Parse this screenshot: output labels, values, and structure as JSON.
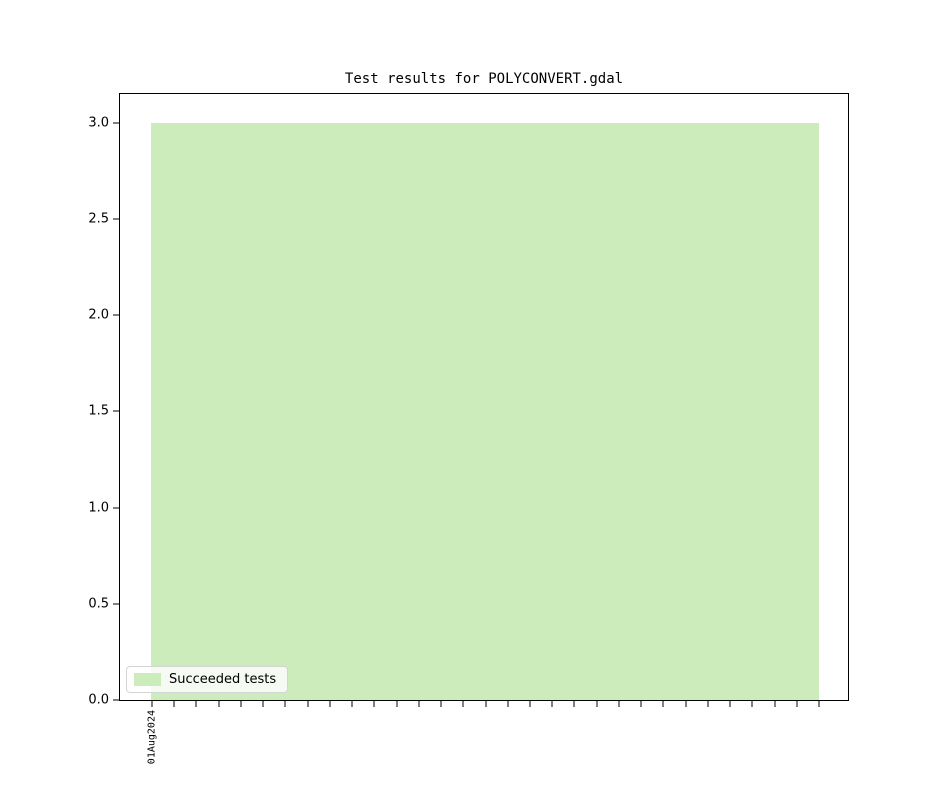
{
  "chart_data": {
    "type": "bar",
    "title": "Test results for POLYCONVERT.gdal",
    "categories": [
      "01Aug2024"
    ],
    "series": [
      {
        "name": "Succeeded tests",
        "values": [
          3
        ],
        "color": "#cdecbc"
      }
    ],
    "xlabel": "",
    "ylabel": "",
    "ylim": [
      0,
      3.15
    ],
    "yticks": [
      0.0,
      0.5,
      1.0,
      1.5,
      2.0,
      2.5,
      3.0
    ],
    "xtick_count": 31,
    "grid": false,
    "legend_position": "lower left",
    "axis_color": "#000000",
    "background_color": "#ffffff"
  },
  "legend": {
    "label": "Succeeded tests",
    "swatch_color": "#cdecbc"
  }
}
